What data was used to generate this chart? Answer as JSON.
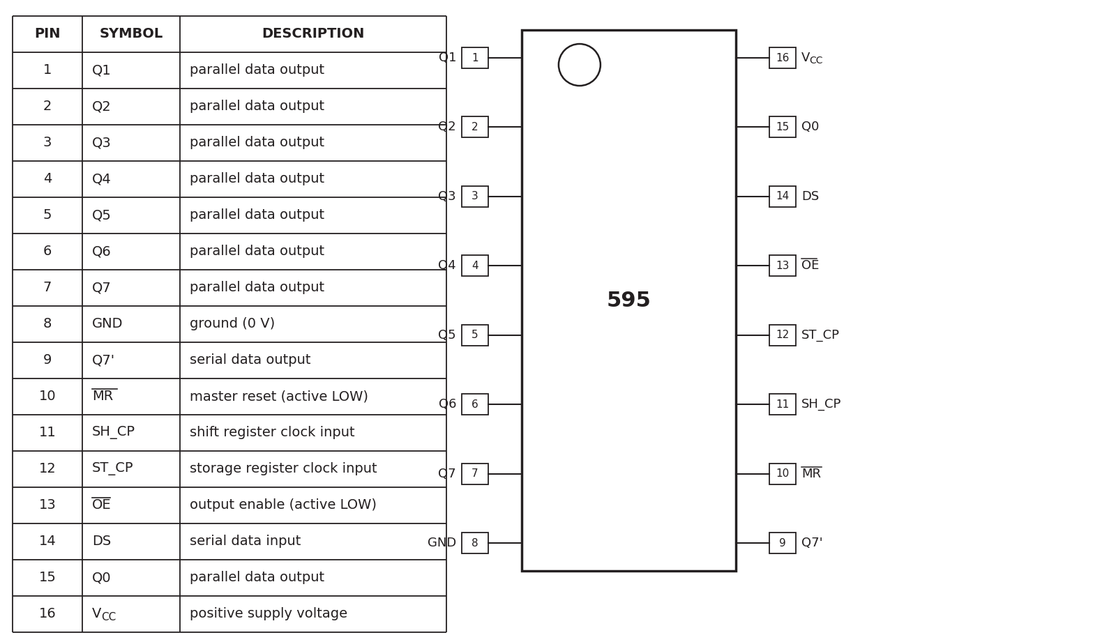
{
  "bg_color": "#ffffff",
  "text_color": "#231f20",
  "table_header": [
    "PIN",
    "SYMBOL",
    "DESCRIPTION"
  ],
  "table_rows": [
    [
      "1",
      "Q1",
      "parallel data output"
    ],
    [
      "2",
      "Q2",
      "parallel data output"
    ],
    [
      "3",
      "Q3",
      "parallel data output"
    ],
    [
      "4",
      "Q4",
      "parallel data output"
    ],
    [
      "5",
      "Q5",
      "parallel data output"
    ],
    [
      "6",
      "Q6",
      "parallel data output"
    ],
    [
      "7",
      "Q7",
      "parallel data output"
    ],
    [
      "8",
      "GND",
      "ground (0 V)"
    ],
    [
      "9",
      "Q7'",
      "serial data output"
    ],
    [
      "10",
      "MR",
      "master reset (active LOW)"
    ],
    [
      "11",
      "SH_CP",
      "shift register clock input"
    ],
    [
      "12",
      "ST_CP",
      "storage register clock input"
    ],
    [
      "13",
      "OE",
      "output enable (active LOW)"
    ],
    [
      "14",
      "DS",
      "serial data input"
    ],
    [
      "15",
      "Q0",
      "parallel data output"
    ],
    [
      "16",
      "VCC",
      "positive supply voltage"
    ]
  ],
  "left_pins": [
    {
      "num": 1,
      "label": "Q1"
    },
    {
      "num": 2,
      "label": "Q2"
    },
    {
      "num": 3,
      "label": "Q3"
    },
    {
      "num": 4,
      "label": "Q4"
    },
    {
      "num": 5,
      "label": "Q5"
    },
    {
      "num": 6,
      "label": "Q6"
    },
    {
      "num": 7,
      "label": "Q7"
    },
    {
      "num": 8,
      "label": "GND"
    }
  ],
  "right_pins": [
    {
      "num": 16,
      "label": "VCC"
    },
    {
      "num": 15,
      "label": "Q0"
    },
    {
      "num": 14,
      "label": "DS"
    },
    {
      "num": 13,
      "label": "OE"
    },
    {
      "num": 12,
      "label": "ST_CP"
    },
    {
      "num": 11,
      "label": "SH_CP"
    },
    {
      "num": 10,
      "label": "MR"
    },
    {
      "num": 9,
      "label": "Q7'"
    }
  ],
  "ic_label": "595",
  "table_font_size": 14,
  "header_font_size": 14,
  "pin_label_font_size": 13,
  "pin_num_font_size": 11,
  "ic_label_font_size": 22
}
